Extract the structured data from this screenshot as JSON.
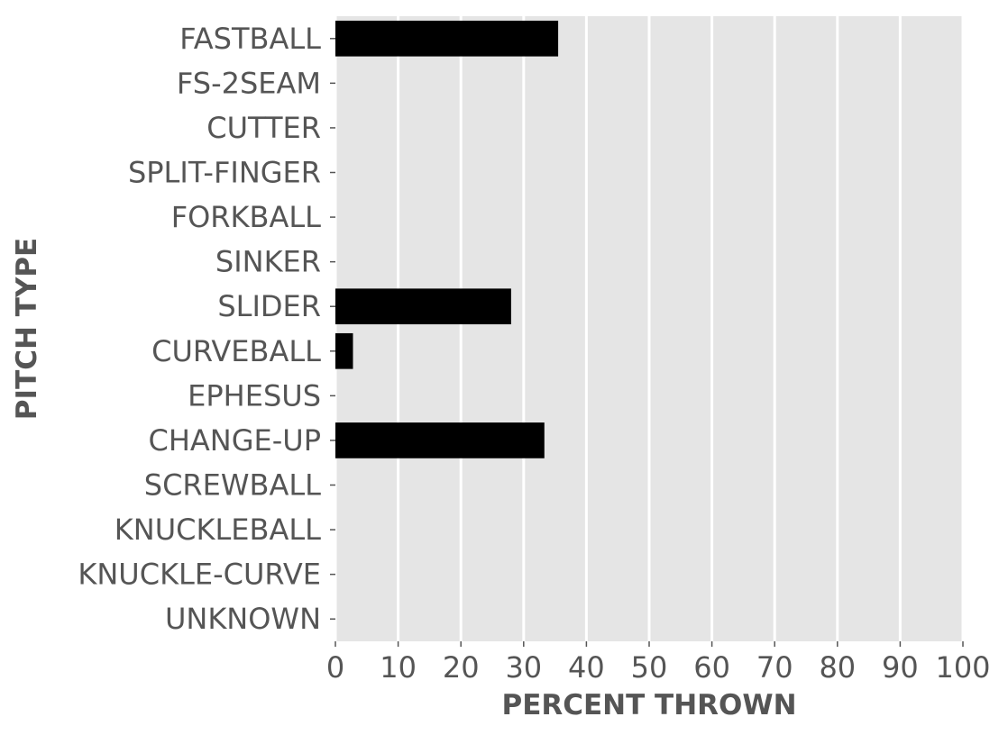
{
  "chart_data": {
    "type": "bar",
    "orientation": "horizontal",
    "categories": [
      "FASTBALL",
      "FS-2SEAM",
      "CUTTER",
      "SPLIT-FINGER",
      "FORKBALL",
      "SINKER",
      "SLIDER",
      "CURVEBALL",
      "EPHESUS",
      "CHANGE-UP",
      "SCREWBALL",
      "KNUCKLEBALL",
      "KNUCKLE-CURVE",
      "UNKNOWN"
    ],
    "values": [
      35.5,
      0,
      0,
      0,
      0,
      0,
      28.0,
      2.8,
      0,
      33.3,
      0,
      0,
      0,
      0
    ],
    "xlabel": "PERCENT THROWN",
    "ylabel": "PITCH TYPE",
    "xlim": [
      0,
      100
    ],
    "xticks": [
      "0",
      "10",
      "20",
      "30",
      "40",
      "50",
      "60",
      "70",
      "80",
      "90",
      "100"
    ],
    "grid": true,
    "bar_color": "#000000",
    "background_color": "#e5e5e5",
    "grid_color": "#ffffff"
  }
}
